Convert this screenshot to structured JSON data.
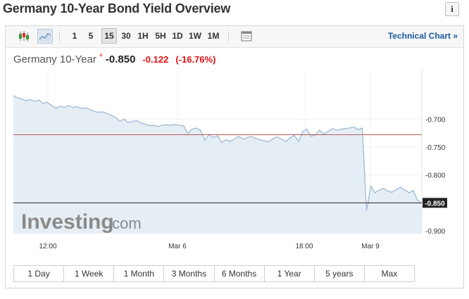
{
  "page": {
    "title": "Germany 10-Year Bond Yield Overview",
    "info_label": "i"
  },
  "toolbar": {
    "chart_type_icons": [
      "candlestick-icon",
      "line-chart-icon"
    ],
    "periods": [
      "1",
      "5",
      "15",
      "30",
      "1H",
      "5H",
      "1D",
      "1W",
      "1M"
    ],
    "active_period": "15",
    "table_icon": "table-icon",
    "technical_chart_label": "Technical Chart »"
  },
  "quote": {
    "name": "Germany 10-Year",
    "star": "*",
    "last": "-0.850",
    "change": "-0.122",
    "change_pct": "(-16.76%)"
  },
  "watermark": {
    "brand": "Investing",
    "suffix": ".com"
  },
  "colors": {
    "line": "#9fb9d3",
    "area": "#e6eef5",
    "ref_line": "#b65a5a",
    "last_line": "#222222",
    "negative": "#dd1111"
  },
  "chart_data": {
    "type": "area",
    "x_ticks": [
      "12:00",
      "Mar 6",
      "18:00",
      "Mar 9"
    ],
    "y_ticks": [
      "-0.700",
      "-0.750",
      "-0.800",
      "-0.850",
      "-0.900"
    ],
    "y_range": [
      -0.905,
      -0.614
    ],
    "reference_level": -0.728,
    "last_value_label": "-0.850",
    "last_value": -0.85,
    "series": [
      {
        "values": [
          -0.658,
          -0.662,
          -0.664,
          -0.667,
          -0.665,
          -0.668,
          -0.666,
          -0.672,
          -0.67,
          -0.676,
          -0.68,
          -0.677,
          -0.679,
          -0.676,
          -0.679,
          -0.678,
          -0.681,
          -0.68,
          -0.683,
          -0.686,
          -0.688,
          -0.687,
          -0.69,
          -0.693,
          -0.697,
          -0.704,
          -0.7,
          -0.706,
          -0.704,
          -0.703,
          -0.707,
          -0.709,
          -0.712,
          -0.711,
          -0.713,
          -0.711,
          -0.71,
          -0.711,
          -0.71,
          -0.711,
          -0.712,
          -0.726,
          -0.718,
          -0.716,
          -0.72,
          -0.738,
          -0.728,
          -0.733,
          -0.73,
          -0.742,
          -0.737,
          -0.74,
          -0.735,
          -0.731,
          -0.736,
          -0.733,
          -0.731,
          -0.735,
          -0.737,
          -0.739,
          -0.741,
          -0.735,
          -0.732,
          -0.736,
          -0.74,
          -0.734,
          -0.729,
          -0.74,
          -0.722,
          -0.718,
          -0.731,
          -0.728,
          -0.72,
          -0.727,
          -0.722,
          -0.717,
          -0.72,
          -0.718,
          -0.717,
          -0.716,
          -0.714,
          -0.719,
          -0.716,
          -0.864,
          -0.82,
          -0.832,
          -0.827,
          -0.824,
          -0.829,
          -0.831,
          -0.826,
          -0.822,
          -0.827,
          -0.832,
          -0.828,
          -0.845,
          -0.85
        ]
      }
    ]
  },
  "ranges": [
    "1 Day",
    "1 Week",
    "1 Month",
    "3 Months",
    "6 Months",
    "1 Year",
    "5 years",
    "Max"
  ]
}
